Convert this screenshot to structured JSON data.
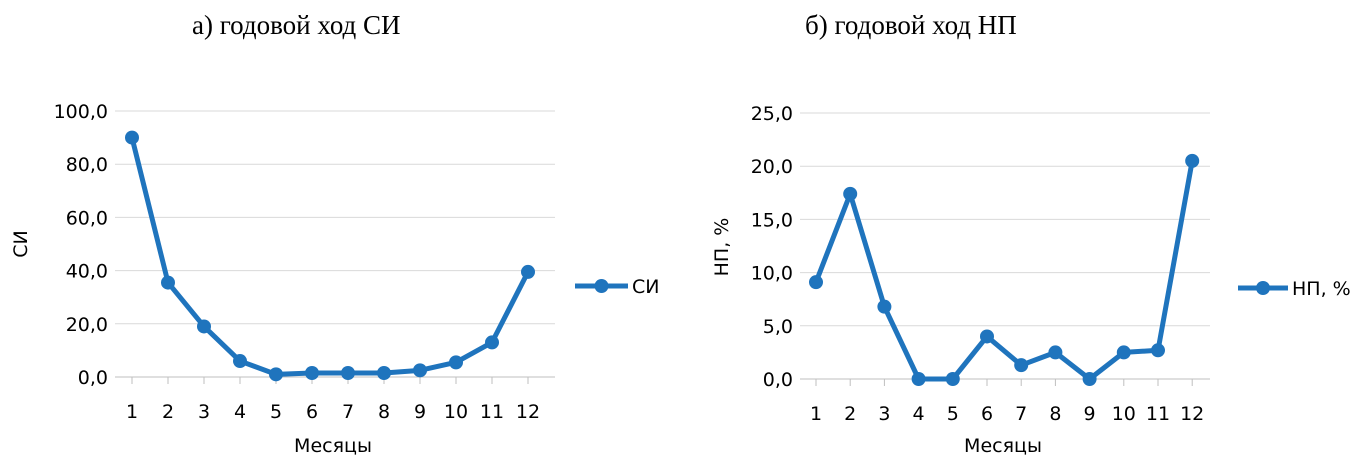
{
  "colors": {
    "series": "#1f74bd",
    "grid": "#d9d9d9",
    "axis": "#bfbfbf"
  },
  "chart_data": [
    {
      "type": "line",
      "title": "а) годовой ход СИ",
      "xlabel": "Месяцы",
      "ylabel": "СИ",
      "categories": [
        "1",
        "2",
        "3",
        "4",
        "5",
        "6",
        "7",
        "8",
        "9",
        "10",
        "11",
        "12"
      ],
      "series": [
        {
          "name": "СИ",
          "values": [
            90.0,
            35.5,
            19.0,
            6.0,
            1.0,
            1.5,
            1.5,
            1.5,
            2.5,
            5.5,
            13.0,
            39.5
          ]
        }
      ],
      "ylim": [
        0,
        100
      ],
      "yticks": [
        "0,0",
        "20,0",
        "40,0",
        "60,0",
        "80,0",
        "100,0"
      ],
      "grid": true,
      "legend": "right"
    },
    {
      "type": "line",
      "title": "б) годовой ход НП",
      "xlabel": "Месяцы",
      "ylabel": "НП, %",
      "categories": [
        "1",
        "2",
        "3",
        "4",
        "5",
        "6",
        "7",
        "8",
        "9",
        "10",
        "11",
        "12"
      ],
      "series": [
        {
          "name": "НП, %",
          "values": [
            9.1,
            17.4,
            6.8,
            0.0,
            0.0,
            4.0,
            1.3,
            2.5,
            0.0,
            2.5,
            2.7,
            20.5
          ]
        }
      ],
      "ylim": [
        0,
        25
      ],
      "yticks": [
        "0,0",
        "5,0",
        "10,0",
        "15,0",
        "20,0",
        "25,0"
      ],
      "grid": true,
      "legend": "right"
    }
  ]
}
